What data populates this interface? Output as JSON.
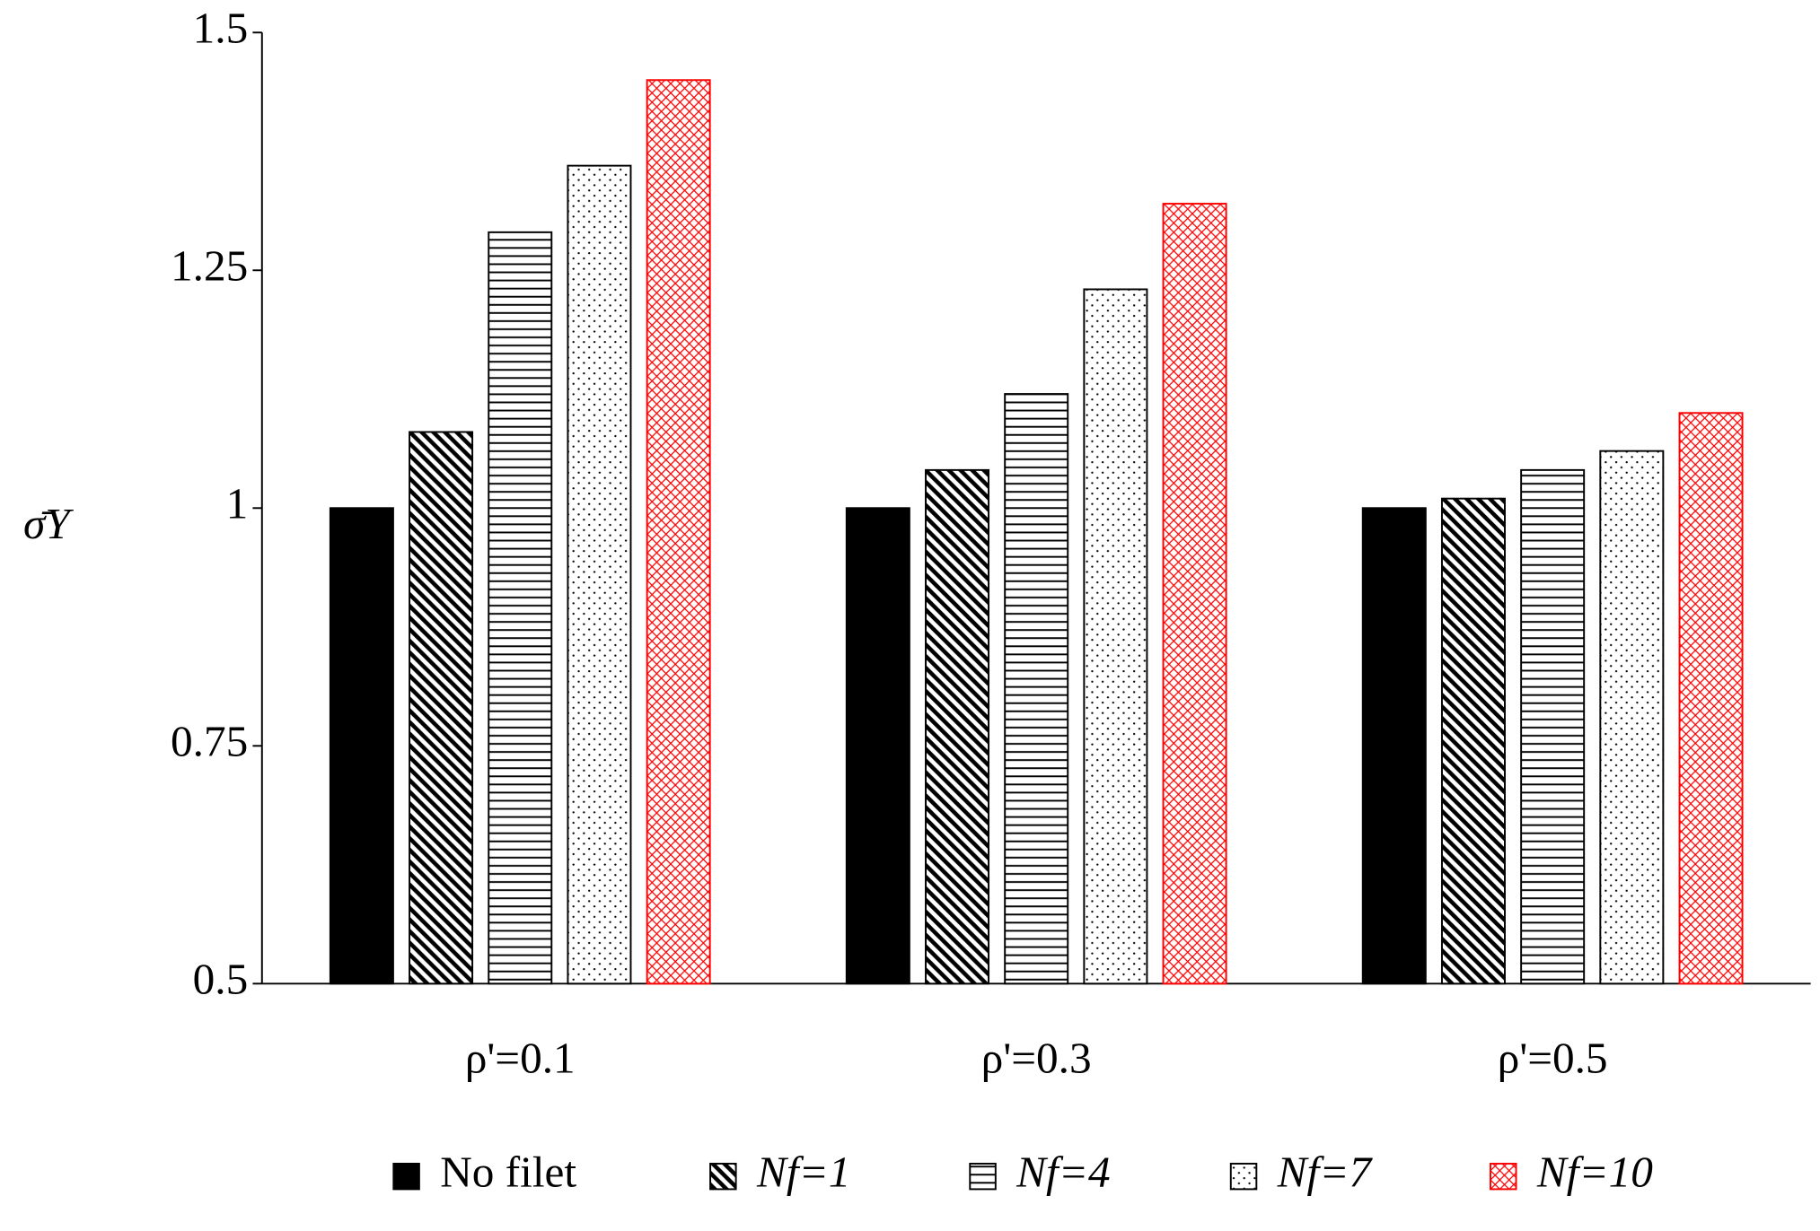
{
  "chart_data": {
    "type": "bar",
    "ylabel": "σ̄Y",
    "categories": [
      "ρ'=0.1",
      "ρ'=0.3",
      "ρ'=0.5"
    ],
    "series": [
      {
        "name": "No filet",
        "color": "#000000",
        "pattern": "solid",
        "values": [
          1,
          1,
          1
        ]
      },
      {
        "name": "Nf=1",
        "color": "#000000",
        "pattern": "diagonal",
        "values": [
          1.08,
          1.04,
          1.01
        ]
      },
      {
        "name": "Nf=4",
        "color": "#000000",
        "pattern": "horizontal",
        "values": [
          1.29,
          1.12,
          1.04
        ]
      },
      {
        "name": "Nf=7",
        "color": "#000000",
        "pattern": "dots",
        "values": [
          1.36,
          1.23,
          1.06
        ]
      },
      {
        "name": "Nf=10",
        "color": "#ff0000",
        "pattern": "crosshatch",
        "values": [
          1.45,
          1.32,
          1.1
        ]
      }
    ],
    "ylim": [
      0.5,
      1.5
    ],
    "yticks": [
      0.5,
      0.75,
      1,
      1.25,
      1.5
    ],
    "grid": false,
    "legend": "bottom"
  }
}
